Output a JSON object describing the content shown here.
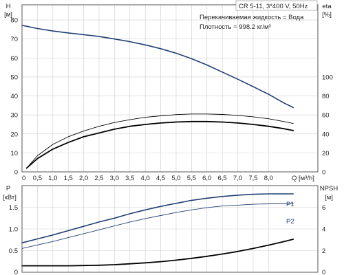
{
  "chart_data": [
    {
      "type": "line",
      "title": "CR 5-11, 3*400 V, 50Hz",
      "annotations": [
        "Перекачиваемая жидкость = Вода",
        "Плотность = 998.2 кг/м³"
      ],
      "x_label": "Q",
      "x_unit": "[м³/h]",
      "x_ticks": [
        "0",
        "0,5",
        "1,0",
        "1,5",
        "2,0",
        "2,5",
        "3,0",
        "3,5",
        "4,0",
        "4,5",
        "5,0",
        "5,5",
        "6,0",
        "6,5",
        "7,0",
        "7,5",
        "8,0"
      ],
      "xlim": [
        0,
        9.6
      ],
      "y_left_label": "H",
      "y_left_unit": "[м]",
      "y_left_ticks": [
        "0",
        "10",
        "20",
        "30",
        "40",
        "50",
        "60",
        "70",
        "80"
      ],
      "y_left_lim": [
        0,
        88
      ],
      "y_right_label": "eta",
      "y_right_unit": "[%]",
      "y_right_ticks": [
        "0",
        "20",
        "40",
        "60",
        "80",
        "100"
      ],
      "y_right_lim": [
        0,
        176
      ],
      "grid": true,
      "series": [
        {
          "axis": "left",
          "color": "#1f3f73",
          "x": [
            0,
            0.5,
            1.0,
            1.5,
            2.0,
            2.5,
            3.0,
            3.5,
            4.0,
            4.5,
            5.0,
            5.5,
            6.0,
            6.5,
            7.0,
            7.5,
            8.0,
            8.5,
            8.8
          ],
          "y": [
            77.2,
            75.5,
            74.2,
            73.2,
            72.3,
            71.3,
            70.0,
            68.6,
            66.9,
            64.9,
            62.5,
            59.6,
            56.3,
            52.6,
            48.8,
            44.9,
            40.9,
            36.3,
            33.9
          ]
        },
        {
          "axis": "right",
          "color": "#000000",
          "x": [
            0.15,
            0.5,
            1.0,
            1.5,
            2.0,
            2.5,
            3.0,
            3.5,
            4.0,
            4.5,
            5.0,
            5.5,
            6.0,
            6.5,
            7.0,
            7.5,
            8.0,
            8.5,
            8.8
          ],
          "y": [
            4,
            14,
            24,
            31,
            37,
            41,
            45,
            48,
            50,
            51.5,
            52.5,
            53,
            53,
            52.5,
            51.5,
            50,
            48,
            45.5,
            43.5
          ]
        },
        {
          "axis": "right",
          "color": "#000000",
          "x": [
            0.15,
            0.5,
            1.0,
            1.5,
            2.0,
            2.5,
            3.0,
            3.5,
            4.0,
            4.5,
            5.0,
            5.5,
            6.0,
            6.5,
            7.0,
            7.5,
            8.0,
            8.5,
            8.8
          ],
          "y": [
            4,
            17,
            29,
            37,
            43,
            48,
            52,
            55,
            57.5,
            59,
            60.3,
            61,
            61,
            60.5,
            59.5,
            58,
            56,
            53,
            51
          ]
        }
      ]
    },
    {
      "type": "line",
      "series_labels": [
        "P1",
        "P2"
      ],
      "x_label": "Q",
      "x_unit": "[м³/h]",
      "xlim": [
        0,
        9.6
      ],
      "y_left_label": "P",
      "y_left_unit": "[кВт]",
      "y_left_ticks": [
        "0",
        "0.5",
        "1.0",
        "1.5"
      ],
      "y_left_lim": [
        0,
        2.0
      ],
      "y_right_label": "NPSH",
      "y_right_unit": "[м]",
      "y_right_ticks": [
        "0",
        "2",
        "4",
        "6"
      ],
      "y_right_lim": [
        0,
        8
      ],
      "grid": true,
      "series": [
        {
          "name": "P1",
          "axis": "left",
          "color": "#1f3f73",
          "x": [
            0,
            0.5,
            1.0,
            1.5,
            2.0,
            2.5,
            3.0,
            3.5,
            4.0,
            4.5,
            5.0,
            5.5,
            6.0,
            6.5,
            7.0,
            7.5,
            8.0,
            8.5,
            8.8
          ],
          "y": [
            0.68,
            0.77,
            0.86,
            0.96,
            1.06,
            1.16,
            1.25,
            1.35,
            1.44,
            1.52,
            1.59,
            1.66,
            1.71,
            1.75,
            1.78,
            1.8,
            1.81,
            1.81,
            1.81
          ]
        },
        {
          "name": "P2",
          "axis": "left",
          "color": "#1f3f73",
          "x": [
            0,
            0.5,
            1.0,
            1.5,
            2.0,
            2.5,
            3.0,
            3.5,
            4.0,
            4.5,
            5.0,
            5.5,
            6.0,
            6.5,
            7.0,
            7.5,
            8.0,
            8.5,
            8.8
          ],
          "y": [
            0.55,
            0.63,
            0.71,
            0.8,
            0.89,
            0.98,
            1.07,
            1.16,
            1.24,
            1.31,
            1.38,
            1.44,
            1.49,
            1.53,
            1.55,
            1.57,
            1.58,
            1.58,
            1.58
          ]
        },
        {
          "axis": "right",
          "color": "#000000",
          "x": [
            0,
            0.5,
            1.0,
            1.5,
            2.0,
            2.5,
            3.0,
            3.5,
            4.0,
            4.5,
            5.0,
            5.5,
            6.0,
            6.5,
            7.0,
            7.5,
            8.0,
            8.5,
            8.8
          ],
          "y": [
            0.6,
            0.6,
            0.6,
            0.6,
            0.62,
            0.65,
            0.7,
            0.78,
            0.87,
            0.98,
            1.12,
            1.28,
            1.47,
            1.68,
            1.92,
            2.2,
            2.5,
            2.83,
            3.05
          ]
        }
      ]
    }
  ]
}
